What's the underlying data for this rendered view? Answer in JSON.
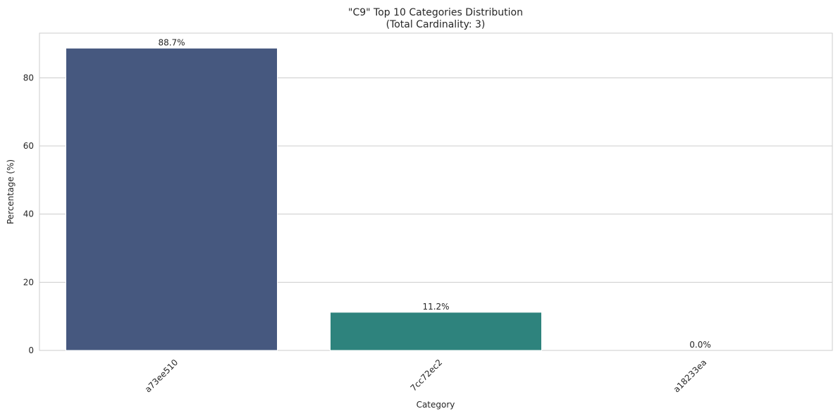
{
  "chart_data": {
    "type": "bar",
    "title": "\"C9\" Top 10 Categories Distribution",
    "subtitle": "(Total Cardinality: 3)",
    "xlabel": "Category",
    "ylabel": "Percentage (%)",
    "categories": [
      "a73ee510",
      "7cc72ec2",
      "a18233ea"
    ],
    "values": [
      88.7,
      11.2,
      0.0
    ],
    "data_labels": [
      "88.7%",
      "11.2%",
      "0.0%"
    ],
    "colors": [
      "#46587f",
      "#2e837d",
      "#5ec962"
    ],
    "ylim": [
      0,
      93.1
    ],
    "yticks": [
      0,
      20,
      40,
      60,
      80
    ],
    "grid": "horizontal",
    "x_tick_rotation": 45
  }
}
